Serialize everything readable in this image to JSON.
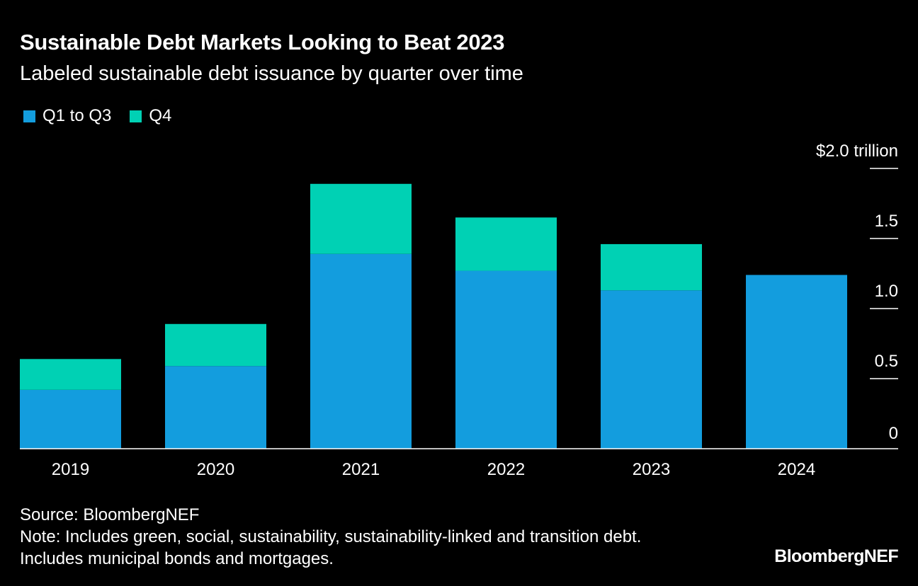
{
  "header": {
    "title": "Sustainable Debt Markets Looking to Beat 2023",
    "subtitle": "Labeled sustainable debt issuance by quarter over time"
  },
  "footer": {
    "source": "Source: BloombergNEF",
    "note_line1": "Note: Includes green, social, sustainability, sustainability-linked and transition debt.",
    "note_line2": "Includes municipal bonds and mortgages.",
    "brand": "BloombergNEF"
  },
  "colors": {
    "q1_q3": "#139dde",
    "q4": "#00d1b4",
    "background": "#000000",
    "text": "#ffffff"
  },
  "chart_data": {
    "type": "bar",
    "stacked": true,
    "categories": [
      "2019",
      "2020",
      "2021",
      "2022",
      "2023",
      "2024"
    ],
    "series": [
      {
        "name": "Q1 to Q3",
        "values": [
          0.42,
          0.59,
          1.39,
          1.27,
          1.13,
          1.24
        ]
      },
      {
        "name": "Q4",
        "values": [
          0.22,
          0.3,
          0.5,
          0.38,
          0.33,
          0
        ]
      }
    ],
    "ylim": [
      0,
      2.0
    ],
    "yticks": [
      0,
      0.5,
      1.0,
      1.5,
      2.0
    ],
    "ytick_labels": [
      "0",
      "0.5",
      "1.0",
      "1.5",
      "$2.0 trillion"
    ],
    "y_axis_side": "right",
    "legend_position": "top-left",
    "grid": false
  }
}
